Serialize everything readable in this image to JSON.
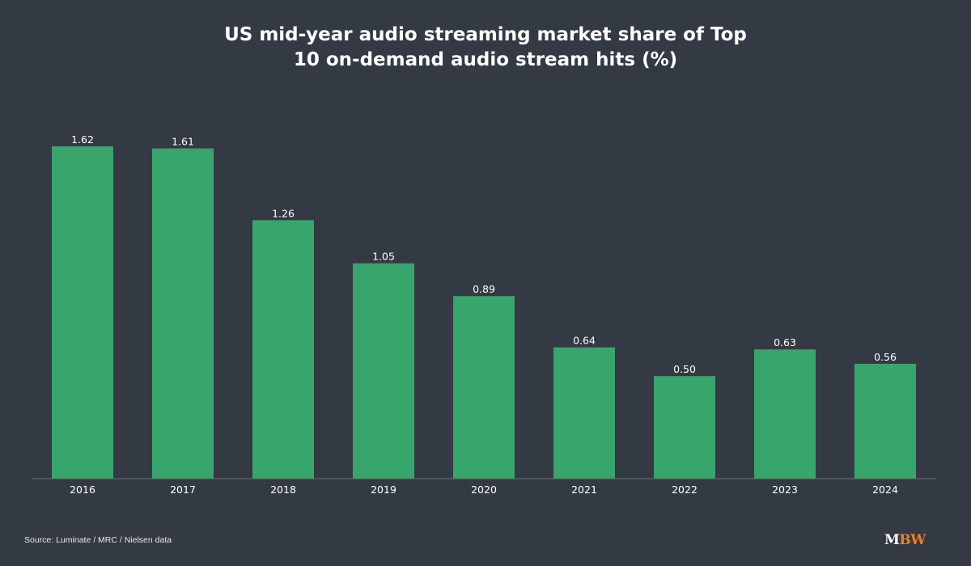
{
  "chart_data": {
    "type": "bar",
    "title_lines": [
      "US mid-year audio streaming market share of Top",
      "10 on-demand audio stream hits (%)"
    ],
    "categories": [
      "2016",
      "2017",
      "2018",
      "2019",
      "2020",
      "2021",
      "2022",
      "2023",
      "2024"
    ],
    "values": [
      1.62,
      1.61,
      1.26,
      1.05,
      0.89,
      0.64,
      0.5,
      0.63,
      0.56
    ],
    "value_labels": [
      "1.62",
      "1.61",
      "1.26",
      "1.05",
      "0.89",
      "0.64",
      "0.50",
      "0.63",
      "0.56"
    ],
    "xlabel": "",
    "ylabel": "",
    "ylim": [
      0,
      1.62
    ],
    "grid": false,
    "legend": "none",
    "bar_color": "#38a56c"
  },
  "footer": {
    "source": "Source: Luminate / MRC / Nielsen data",
    "logo_text_white": "M",
    "logo_text_orange": "BW"
  },
  "colors": {
    "background": "#343a43",
    "bar": "#38a56c",
    "logo_orange": "#f07f1c"
  }
}
